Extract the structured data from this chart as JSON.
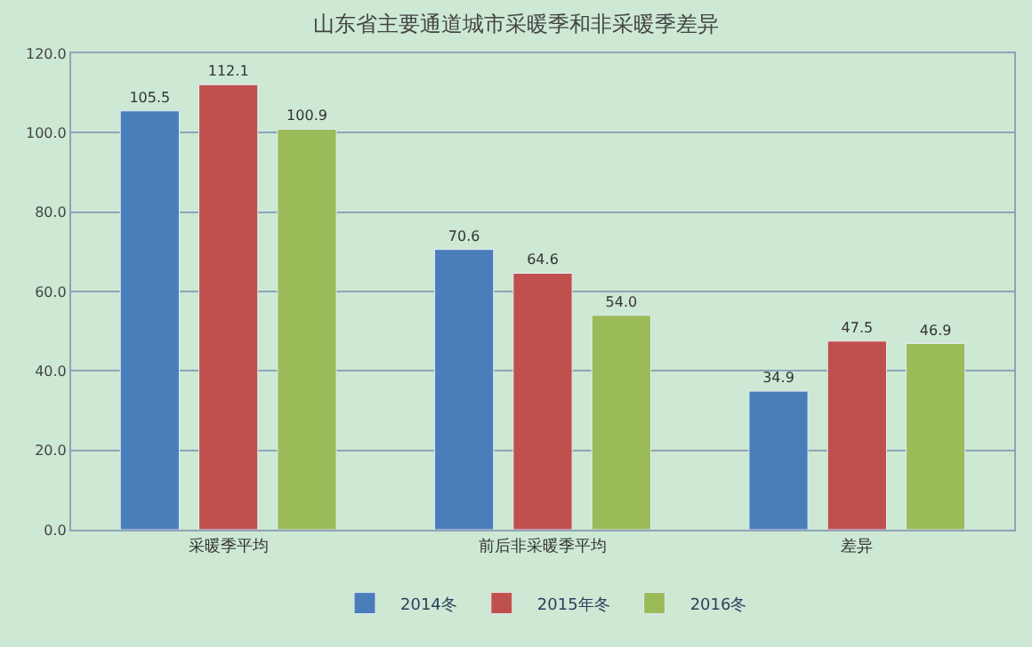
{
  "chart_data": {
    "type": "bar",
    "title": "山东省主要通道城市采暖季和非采暖季差异",
    "categories": [
      "采暖季平均",
      "前后非采暖季平均",
      "差异"
    ],
    "series": [
      {
        "name": "2014冬",
        "color": "#4a7ebb",
        "values": [
          105.5,
          70.6,
          34.9
        ],
        "value_labels": [
          "105.5",
          "70.6",
          "34.9"
        ]
      },
      {
        "name": "2015年冬",
        "color": "#c0504d",
        "values": [
          112.1,
          64.6,
          47.5
        ],
        "value_labels": [
          "112.1",
          "64.6",
          "47.5"
        ]
      },
      {
        "name": "2016冬",
        "color": "#9bbb59",
        "values": [
          100.9,
          54.0,
          46.9
        ],
        "value_labels": [
          "100.9",
          "54.0",
          "46.9"
        ]
      }
    ],
    "ylim": [
      0,
      120
    ],
    "yticks": [
      {
        "value": 0,
        "label": "0.0"
      },
      {
        "value": 20,
        "label": "20.0"
      },
      {
        "value": 40,
        "label": "40.0"
      },
      {
        "value": 60,
        "label": "60.0"
      },
      {
        "value": 80,
        "label": "80.0"
      },
      {
        "value": 100,
        "label": "100.0"
      },
      {
        "value": 120,
        "label": "120.0"
      }
    ],
    "grid": "y",
    "legend": "bottom"
  }
}
